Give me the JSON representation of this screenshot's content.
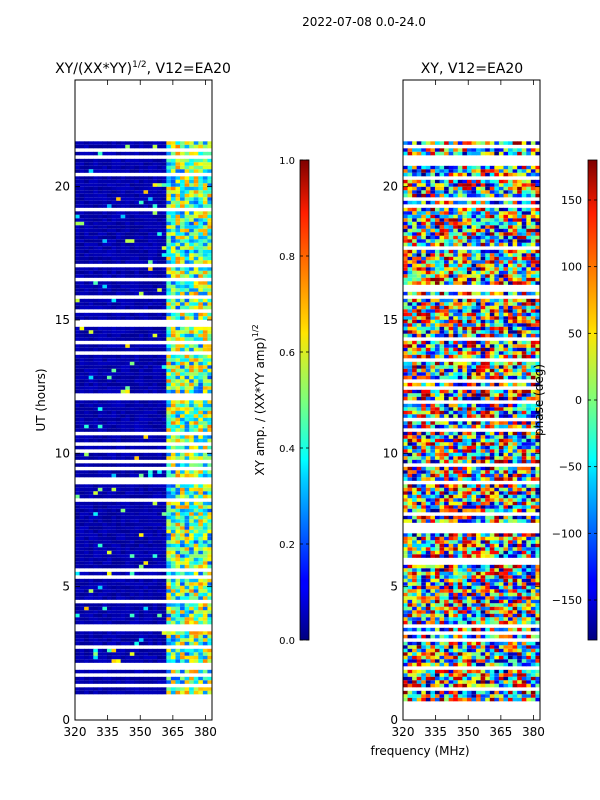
{
  "figure": {
    "suptitle": "2022-07-08 0.0-24.0",
    "shared_xlabel": "frequency (MHz)"
  },
  "colors": {
    "missing": "#ffffff",
    "axes": "#000000",
    "background": "#ffffff"
  },
  "chart_data": [
    {
      "type": "heatmap",
      "title_text": "XY/(XX*YY)",
      "title_exp": "1/2",
      "title_suffix": ", V12=EA20",
      "ylabel": "UT (hours)",
      "xlim": [
        320,
        383
      ],
      "ylim": [
        0,
        24
      ],
      "xticks": [
        320,
        335,
        350,
        365,
        380
      ],
      "yticks": [
        0,
        5,
        10,
        15,
        20
      ],
      "colormap": "jet",
      "coverage_hours": [
        0.8,
        21.7
      ],
      "strong_channel_band_mhz": [
        362,
        383
      ],
      "colorbar": {
        "label_text": "XY amp. / (XX*YY amp)",
        "label_exp": "1/2",
        "range": [
          0.0,
          1.0
        ],
        "ticks": [
          0.0,
          0.2,
          0.4,
          0.6,
          0.8,
          1.0
        ],
        "tick_labels": [
          "0.0",
          "0.2",
          "0.4",
          "0.6",
          "0.8",
          "1.0"
        ]
      }
    },
    {
      "type": "heatmap",
      "title_text": "XY, V12=EA20",
      "ylabel": "",
      "xlim": [
        320,
        383
      ],
      "ylim": [
        0,
        24
      ],
      "xticks": [
        320,
        335,
        350,
        365,
        380
      ],
      "yticks": [
        0,
        5,
        10,
        15,
        20
      ],
      "colormap": "jet",
      "coverage_hours": [
        0.8,
        21.7
      ],
      "colorbar": {
        "label_text": "phase (deg)",
        "range": [
          -180,
          180
        ],
        "ticks": [
          -150,
          -100,
          -50,
          0,
          50,
          100,
          150
        ],
        "tick_labels": [
          "−150",
          "−100",
          "−50",
          "0",
          "50",
          "100",
          "150"
        ]
      }
    }
  ]
}
